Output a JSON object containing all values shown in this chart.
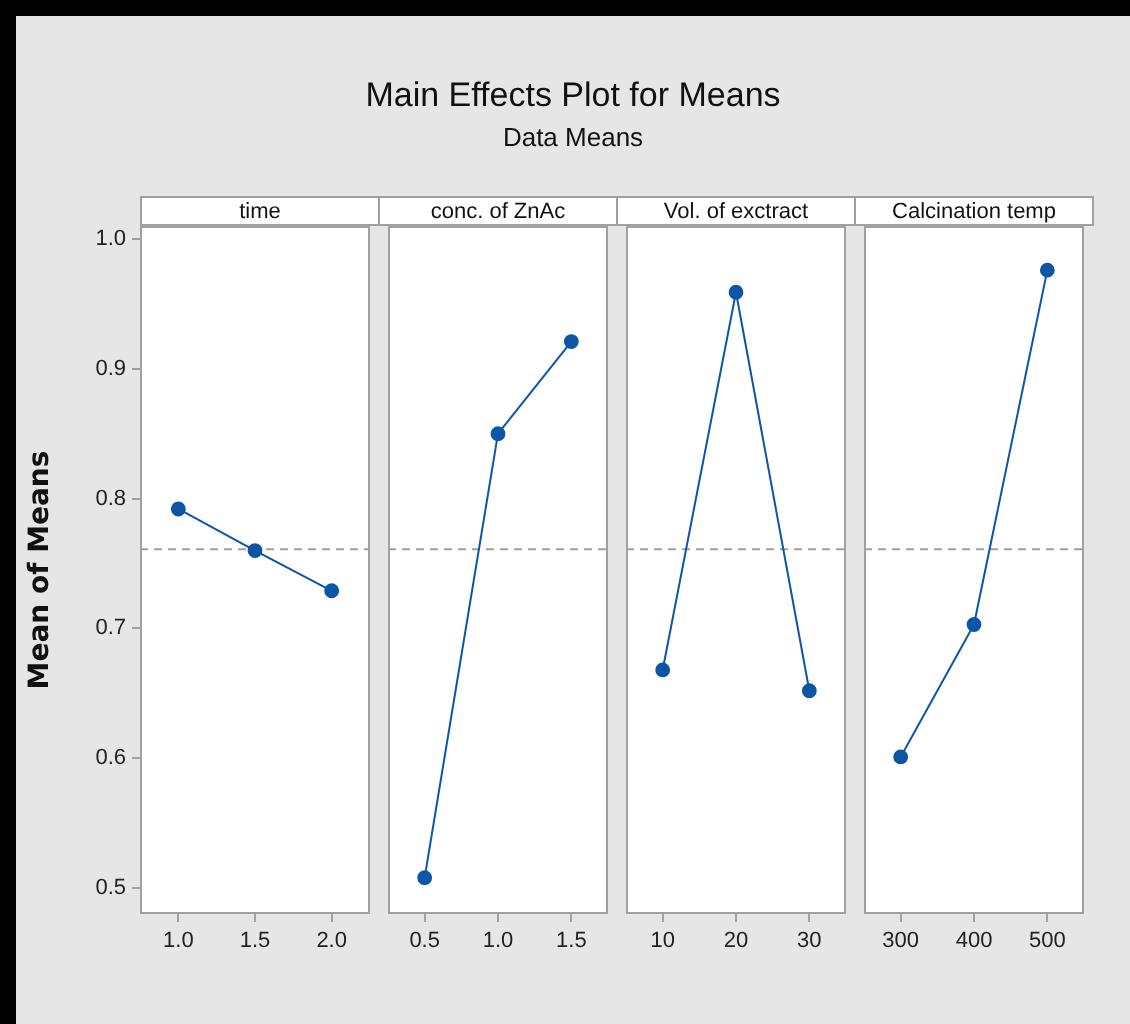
{
  "chart_data": [
    {
      "type": "other",
      "title": "Main Effects Plot for Means",
      "subtitle": "Data Means"
    },
    {
      "type": "line",
      "xlabel": "time",
      "ylabel": "Mean of Means",
      "categories": [
        "1.0",
        "1.5",
        "2.0"
      ],
      "series": [
        {
          "color": "#0d56a6",
          "values": [
            0.792,
            0.76,
            0.729
          ]
        }
      ],
      "ylim": [
        0.48,
        1.01
      ],
      "yticks": [
        {
          "value": 0.5,
          "label": "0.5"
        },
        {
          "value": 0.6,
          "label": "0.6"
        },
        {
          "value": 0.7,
          "label": "0.7"
        },
        {
          "value": 0.8,
          "label": "0.8"
        },
        {
          "value": 0.9,
          "label": "0.9"
        },
        {
          "value": 1.0,
          "label": "1.0"
        }
      ],
      "ref_lines": [
        {
          "axis": "y",
          "value": 0.761,
          "color": "#a0a0a0",
          "line_style": "dashed"
        }
      ],
      "marker": "circle",
      "line_style": "solid",
      "grid": false,
      "legend": false
    },
    {
      "type": "line",
      "xlabel": "conc. of ZnAc",
      "categories": [
        "0.5",
        "1.0",
        "1.5"
      ],
      "series": [
        {
          "color": "#0d56a6",
          "values": [
            0.508,
            0.85,
            0.921
          ]
        }
      ],
      "ylim": [
        0.48,
        1.01
      ],
      "ref_lines": [
        {
          "axis": "y",
          "value": 0.761,
          "color": "#a0a0a0",
          "line_style": "dashed"
        }
      ],
      "marker": "circle",
      "line_style": "solid",
      "grid": false,
      "legend": false,
      "tick_labels": "x"
    },
    {
      "type": "line",
      "xlabel": "Vol. of exctract",
      "categories": [
        "10",
        "20",
        "30"
      ],
      "series": [
        {
          "color": "#0d56a6",
          "values": [
            0.668,
            0.959,
            0.652
          ]
        }
      ],
      "ylim": [
        0.48,
        1.01
      ],
      "ref_lines": [
        {
          "axis": "y",
          "value": 0.761,
          "color": "#a0a0a0",
          "line_style": "dashed"
        }
      ],
      "marker": "circle",
      "line_style": "solid",
      "grid": false,
      "legend": false,
      "tick_labels": "x"
    },
    {
      "type": "line",
      "xlabel": "Calcination temp",
      "categories": [
        "300",
        "400",
        "500"
      ],
      "series": [
        {
          "color": "#0d56a6",
          "values": [
            0.601,
            0.703,
            0.976
          ]
        }
      ],
      "ylim": [
        0.48,
        1.01
      ],
      "ref_lines": [
        {
          "axis": "y",
          "value": 0.761,
          "color": "#a0a0a0",
          "line_style": "dashed"
        }
      ],
      "marker": "circle",
      "line_style": "solid",
      "grid": false,
      "legend": false,
      "tick_labels": "x"
    }
  ]
}
